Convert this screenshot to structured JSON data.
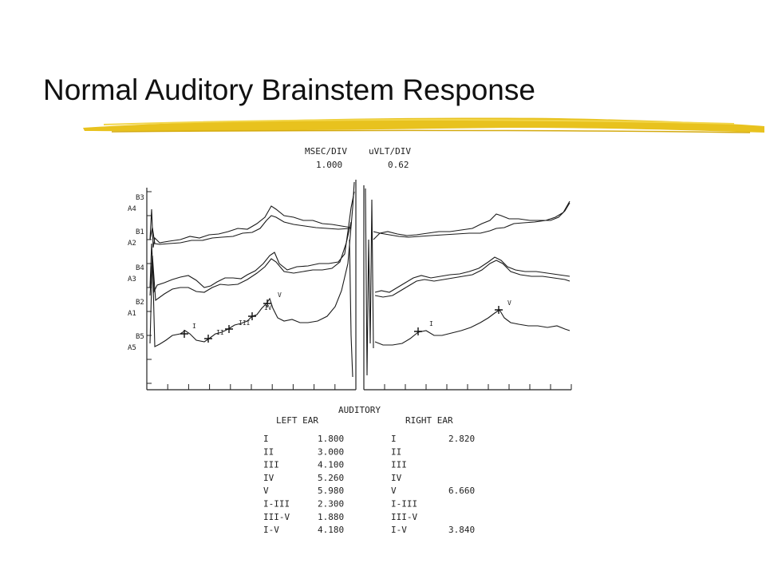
{
  "slide": {
    "title": "Normal Auditory Brainstem Response"
  },
  "scale": {
    "msec_label": "MSEC/DIV",
    "msec_value": "1.000",
    "uvlt_label": "uVLT/DIV",
    "uvlt_value": "0.62"
  },
  "colors": {
    "highlighter": "#e8c21e",
    "trace": "#1a1a1a",
    "title": "#111111"
  },
  "chart_data": {
    "type": "line",
    "panels": [
      {
        "name": "left",
        "trace_labels": [
          [
            "B3",
            "A4"
          ],
          [
            "B1",
            "A2"
          ],
          [
            "B4",
            "A3"
          ],
          [
            "B2",
            "A1"
          ],
          [
            "B5",
            "A5"
          ]
        ],
        "peak_labels": [
          "I",
          "II",
          "III",
          "IV",
          "V"
        ]
      },
      {
        "name": "right",
        "trace_labels": [],
        "peak_labels": [
          "I",
          "V"
        ]
      }
    ]
  },
  "table": {
    "title": "AUDITORY",
    "left_header": "LEFT EAR",
    "right_header": "RIGHT EAR",
    "left_rows": [
      {
        "wave": "I",
        "latency": "1.800"
      },
      {
        "wave": "II",
        "latency": "3.000"
      },
      {
        "wave": "III",
        "latency": "4.100"
      },
      {
        "wave": "IV",
        "latency": "5.260"
      },
      {
        "wave": "V",
        "latency": "5.980"
      },
      {
        "wave": "I-III",
        "latency": "2.300"
      },
      {
        "wave": "III-V",
        "latency": "1.880"
      },
      {
        "wave": "I-V",
        "latency": "4.180"
      }
    ],
    "right_rows": [
      {
        "wave": "I",
        "latency": "2.820"
      },
      {
        "wave": "II",
        "latency": ""
      },
      {
        "wave": "III",
        "latency": ""
      },
      {
        "wave": "IV",
        "latency": ""
      },
      {
        "wave": "V",
        "latency": "6.660"
      },
      {
        "wave": "I-III",
        "latency": ""
      },
      {
        "wave": "III-V",
        "latency": ""
      },
      {
        "wave": "I-V",
        "latency": "3.840"
      }
    ]
  }
}
